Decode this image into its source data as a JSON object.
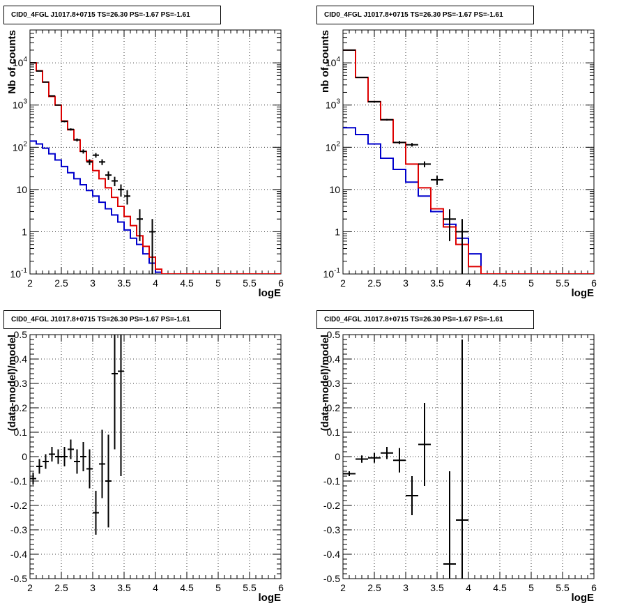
{
  "chart_data": [
    {
      "type": "histogram",
      "title": "CID0_4FGL J1017.8+0715 TS=26.30 PS=-1.67 PS=-1.61",
      "xlabel": "logE",
      "ylabel": "Nb of counts",
      "xlim": [
        2,
        6
      ],
      "ylim": [
        0.1,
        60000
      ],
      "yscale": "log",
      "grid": true,
      "x_ticks": [
        "2",
        "2.5",
        "3",
        "3.5",
        "4",
        "4.5",
        "5",
        "5.5",
        "6"
      ],
      "y_ticks": [
        "10^-1",
        "1",
        "10",
        "10^2",
        "10^3",
        "10^4"
      ],
      "bin_edges": [
        2.0,
        2.1,
        2.2,
        2.3,
        2.4,
        2.5,
        2.6,
        2.7,
        2.8,
        2.9,
        3.0,
        3.1,
        3.2,
        3.3,
        3.4,
        3.5,
        3.6,
        3.7,
        3.8,
        3.9,
        4.0,
        4.1,
        4.2,
        4.3,
        4.4,
        4.5,
        4.6,
        4.7,
        4.8,
        4.9,
        5.0,
        5.1,
        5.2,
        5.3,
        5.4,
        5.5,
        5.6,
        5.7,
        5.8,
        5.9,
        6.0
      ],
      "series": [
        {
          "color": "#0000cc",
          "style": "step",
          "values": [
            140,
            120,
            95,
            70,
            50,
            35,
            25,
            18,
            13,
            9.5,
            7,
            5,
            3.5,
            2.5,
            1.7,
            1.1,
            0.7,
            0.5,
            0.3,
            0.18,
            0.11,
            0.1,
            0.1,
            0.1,
            0.1,
            0.1,
            0.1,
            0.1,
            0.1,
            0.1,
            0.1,
            0.1,
            0.1,
            0.1,
            0.1,
            0.1,
            0.1,
            0.1,
            0.1,
            0.1
          ]
        },
        {
          "color": "#dd0000",
          "style": "step",
          "values": [
            10000,
            6500,
            3500,
            1600,
            1000,
            420,
            260,
            150,
            80,
            48,
            28,
            18,
            11,
            6.5,
            4,
            2.3,
            1.4,
            0.8,
            0.45,
            0.25,
            0.13,
            0.1,
            0.1,
            0.1,
            0.1,
            0.1,
            0.1,
            0.1,
            0.1,
            0.1,
            0.1,
            0.1,
            0.1,
            0.1,
            0.1,
            0.1,
            0.1,
            0.1,
            0.1,
            0.1
          ]
        },
        {
          "color": "#000000",
          "style": "errorbar",
          "points": [
            {
              "x": 2.05,
              "y": 10000,
              "err": 100
            },
            {
              "x": 2.15,
              "y": 6400,
              "err": 80
            },
            {
              "x": 2.25,
              "y": 3500,
              "err": 60
            },
            {
              "x": 2.35,
              "y": 1650,
              "err": 40
            },
            {
              "x": 2.45,
              "y": 1000,
              "err": 32
            },
            {
              "x": 2.55,
              "y": 410,
              "err": 20
            },
            {
              "x": 2.65,
              "y": 265,
              "err": 16
            },
            {
              "x": 2.75,
              "y": 150,
              "err": 12
            },
            {
              "x": 2.85,
              "y": 80,
              "err": 9
            },
            {
              "x": 2.95,
              "y": 45,
              "err": 7
            },
            {
              "x": 3.05,
              "y": 65,
              "err": 8
            },
            {
              "x": 3.15,
              "y": 45,
              "err": 7
            },
            {
              "x": 3.25,
              "y": 22,
              "err": 5
            },
            {
              "x": 3.35,
              "y": 16,
              "err": 4
            },
            {
              "x": 3.45,
              "y": 10,
              "err": 3.2
            },
            {
              "x": 3.55,
              "y": 7,
              "err": 2.6
            },
            {
              "x": 3.75,
              "y": 2,
              "err": 1.4
            },
            {
              "x": 3.95,
              "y": 1,
              "err": 1
            }
          ]
        }
      ]
    },
    {
      "type": "histogram",
      "title": "CID0_4FGL J1017.8+0715 TS=26.30 PS=-1.67 PS=-1.61",
      "xlabel": "logE",
      "ylabel": "nb of counts",
      "xlim": [
        2,
        6
      ],
      "ylim": [
        0.1,
        60000
      ],
      "yscale": "log",
      "grid": true,
      "x_ticks": [
        "2",
        "2.5",
        "3",
        "3.5",
        "4",
        "4.5",
        "5",
        "5.5",
        "6"
      ],
      "y_ticks": [
        "10^-1",
        "1",
        "10",
        "10^2",
        "10^3",
        "10^4"
      ],
      "bin_edges": [
        2.0,
        2.2,
        2.4,
        2.6,
        2.8,
        3.0,
        3.2,
        3.4,
        3.6,
        3.8,
        4.0,
        4.2,
        4.4,
        4.6,
        4.8,
        5.0,
        5.2,
        5.4,
        5.6,
        5.8,
        6.0
      ],
      "series": [
        {
          "color": "#0000cc",
          "style": "step",
          "values": [
            290,
            200,
            120,
            55,
            30,
            15,
            7,
            3,
            1.5,
            0.7,
            0.3,
            0.1,
            0.1,
            0.1,
            0.1,
            0.1,
            0.1,
            0.1,
            0.1,
            0.1
          ]
        },
        {
          "color": "#dd0000",
          "style": "step",
          "values": [
            20000,
            4500,
            1200,
            450,
            130,
            40,
            11,
            3.5,
            1.3,
            0.5,
            0.15,
            0.1,
            0.1,
            0.1,
            0.1,
            0.1,
            0.1,
            0.1,
            0.1,
            0.1
          ]
        },
        {
          "color": "#000000",
          "style": "errorbar",
          "points": [
            {
              "x": 2.1,
              "y": 20000,
              "err": 140
            },
            {
              "x": 2.3,
              "y": 4500,
              "err": 67
            },
            {
              "x": 2.5,
              "y": 1200,
              "err": 35
            },
            {
              "x": 2.7,
              "y": 450,
              "err": 21
            },
            {
              "x": 2.9,
              "y": 130,
              "err": 11
            },
            {
              "x": 3.1,
              "y": 115,
              "err": 11
            },
            {
              "x": 3.3,
              "y": 40,
              "err": 6.3
            },
            {
              "x": 3.5,
              "y": 17,
              "err": 4.1
            },
            {
              "x": 3.7,
              "y": 2,
              "err": 1.4
            },
            {
              "x": 3.9,
              "y": 1,
              "err": 1
            }
          ]
        }
      ]
    },
    {
      "type": "errorbar",
      "title": "CID0_4FGL J1017.8+0715 TS=26.30 PS=-1.67 PS=-1.61",
      "xlabel": "logE",
      "ylabel": "(data-model)/model",
      "xlim": [
        2,
        6
      ],
      "ylim": [
        -0.5,
        0.5
      ],
      "grid": true,
      "x_ticks": [
        "2",
        "2.5",
        "3",
        "3.5",
        "4",
        "4.5",
        "5",
        "5.5",
        "6"
      ],
      "y_ticks": [
        "-0.5",
        "-0.4",
        "-0.3",
        "-0.2",
        "-0.1",
        "0",
        "0.1",
        "0.2",
        "0.3",
        "0.4",
        "0.5"
      ],
      "points": [
        {
          "x": 2.05,
          "y": -0.09,
          "err": 0.025
        },
        {
          "x": 2.15,
          "y": -0.04,
          "err": 0.03
        },
        {
          "x": 2.25,
          "y": -0.02,
          "err": 0.03
        },
        {
          "x": 2.35,
          "y": 0.01,
          "err": 0.03
        },
        {
          "x": 2.45,
          "y": 0.0,
          "err": 0.03
        },
        {
          "x": 2.55,
          "y": 0.0,
          "err": 0.04
        },
        {
          "x": 2.65,
          "y": 0.03,
          "err": 0.04
        },
        {
          "x": 2.75,
          "y": -0.02,
          "err": 0.05
        },
        {
          "x": 2.85,
          "y": 0.0,
          "err": 0.06
        },
        {
          "x": 2.95,
          "y": -0.05,
          "err": 0.08
        },
        {
          "x": 3.05,
          "y": -0.23,
          "err": 0.09
        },
        {
          "x": 3.15,
          "y": -0.03,
          "err": 0.14
        },
        {
          "x": 3.25,
          "y": -0.1,
          "err": 0.19
        },
        {
          "x": 3.35,
          "y": 0.34,
          "err": 0.31
        },
        {
          "x": 3.45,
          "y": 0.35,
          "err": 0.43
        }
      ]
    },
    {
      "type": "errorbar",
      "title": "CID0_4FGL J1017.8+0715 TS=26.30 PS=-1.67 PS=-1.61",
      "xlabel": "logE",
      "ylabel": "(data-model)/model",
      "xlim": [
        2,
        6
      ],
      "ylim": [
        -0.5,
        0.5
      ],
      "grid": true,
      "x_ticks": [
        "2",
        "2.5",
        "3",
        "3.5",
        "4",
        "4.5",
        "5",
        "5.5",
        "6"
      ],
      "y_ticks": [
        "-0.5",
        "-0.4",
        "-0.3",
        "-0.2",
        "-0.1",
        "0",
        "0.1",
        "0.2",
        "0.3",
        "0.4",
        "0.5"
      ],
      "points": [
        {
          "x": 2.1,
          "y": -0.07,
          "err": 0.01
        },
        {
          "x": 2.3,
          "y": -0.01,
          "err": 0.015
        },
        {
          "x": 2.5,
          "y": -0.005,
          "err": 0.02
        },
        {
          "x": 2.7,
          "y": 0.015,
          "err": 0.025
        },
        {
          "x": 2.9,
          "y": -0.015,
          "err": 0.05
        },
        {
          "x": 3.1,
          "y": -0.16,
          "err": 0.08
        },
        {
          "x": 3.3,
          "y": 0.05,
          "err": 0.17
        },
        {
          "x": 3.7,
          "y": -0.44,
          "err": 0.38
        },
        {
          "x": 3.9,
          "y": -0.26,
          "err": 0.74
        }
      ]
    }
  ]
}
